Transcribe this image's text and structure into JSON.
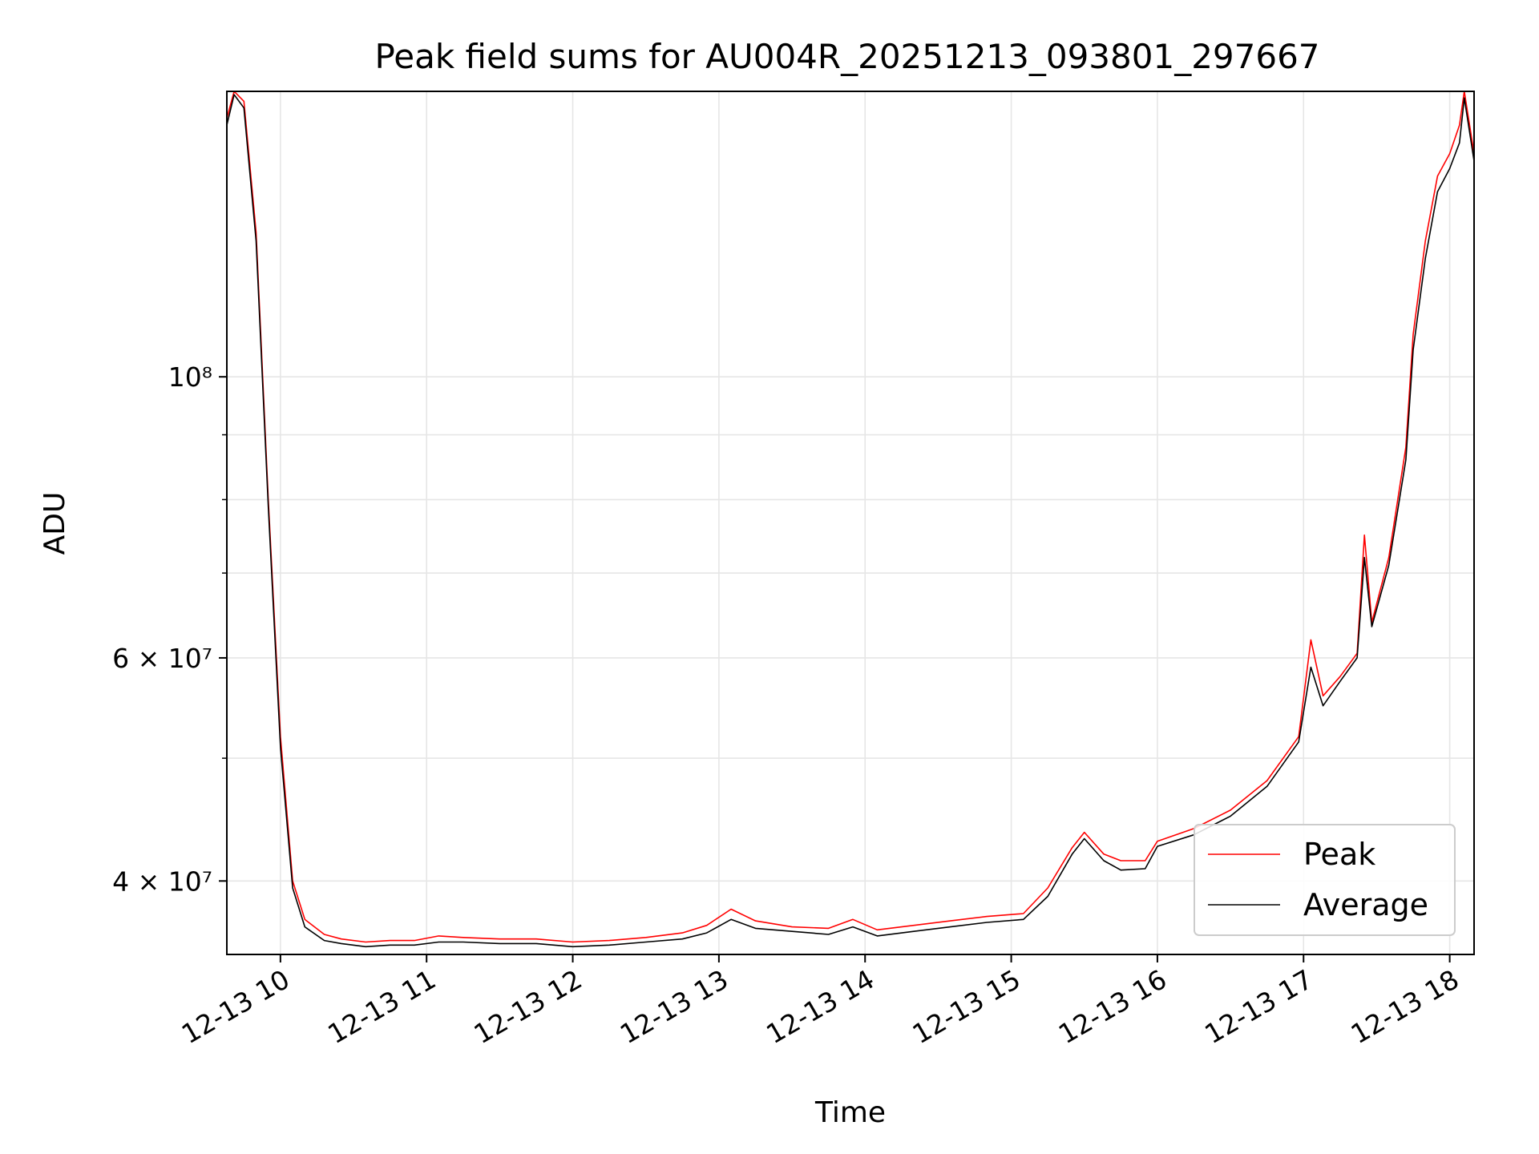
{
  "chart_data": {
    "type": "line",
    "title": "Peak field sums for AU004R_20251213_093801_297667",
    "xlabel": "Time",
    "ylabel": "ADU",
    "yscale": "log",
    "grid": true,
    "legend_position": "lower-right",
    "xlim": [
      "2025-12-13 09:38",
      "2025-12-13 18:10"
    ],
    "ylim": [
      35000000,
      168000000
    ],
    "x_ticks": [
      {
        "t": "2025-12-13 10:00",
        "label": "12-13 10"
      },
      {
        "t": "2025-12-13 11:00",
        "label": "12-13 11"
      },
      {
        "t": "2025-12-13 12:00",
        "label": "12-13 12"
      },
      {
        "t": "2025-12-13 13:00",
        "label": "12-13 13"
      },
      {
        "t": "2025-12-13 14:00",
        "label": "12-13 14"
      },
      {
        "t": "2025-12-13 15:00",
        "label": "12-13 15"
      },
      {
        "t": "2025-12-13 16:00",
        "label": "12-13 16"
      },
      {
        "t": "2025-12-13 17:00",
        "label": "12-13 17"
      },
      {
        "t": "2025-12-13 18:00",
        "label": "12-13 18"
      }
    ],
    "y_ticks": [
      {
        "value": 40000000,
        "label": "4 × 10⁷"
      },
      {
        "value": 60000000,
        "label": "6 × 10⁷"
      },
      {
        "value": 100000000,
        "label": "10⁸"
      }
    ],
    "y_minor_ticks": [
      50000000,
      70000000,
      80000000,
      90000000
    ],
    "series": [
      {
        "name": "Peak",
        "color": "#ff0000",
        "x": [
          "2025-12-13 09:38",
          "2025-12-13 09:41",
          "2025-12-13 09:45",
          "2025-12-13 09:50",
          "2025-12-13 09:55",
          "2025-12-13 10:00",
          "2025-12-13 10:05",
          "2025-12-13 10:10",
          "2025-12-13 10:18",
          "2025-12-13 10:25",
          "2025-12-13 10:35",
          "2025-12-13 10:45",
          "2025-12-13 10:55",
          "2025-12-13 11:05",
          "2025-12-13 11:15",
          "2025-12-13 11:30",
          "2025-12-13 11:45",
          "2025-12-13 12:00",
          "2025-12-13 12:15",
          "2025-12-13 12:30",
          "2025-12-13 12:45",
          "2025-12-13 12:55",
          "2025-12-13 13:05",
          "2025-12-13 13:15",
          "2025-12-13 13:30",
          "2025-12-13 13:45",
          "2025-12-13 13:55",
          "2025-12-13 14:05",
          "2025-12-13 14:20",
          "2025-12-13 14:35",
          "2025-12-13 14:50",
          "2025-12-13 15:05",
          "2025-12-13 15:15",
          "2025-12-13 15:25",
          "2025-12-13 15:30",
          "2025-12-13 15:38",
          "2025-12-13 15:45",
          "2025-12-13 15:55",
          "2025-12-13 16:00",
          "2025-12-13 16:15",
          "2025-12-13 16:30",
          "2025-12-13 16:45",
          "2025-12-13 16:58",
          "2025-12-13 17:03",
          "2025-12-13 17:08",
          "2025-12-13 17:15",
          "2025-12-13 17:22",
          "2025-12-13 17:25",
          "2025-12-13 17:28",
          "2025-12-13 17:35",
          "2025-12-13 17:42",
          "2025-12-13 17:45",
          "2025-12-13 17:50",
          "2025-12-13 17:55",
          "2025-12-13 18:00",
          "2025-12-13 18:04",
          "2025-12-13 18:06",
          "2025-12-13 18:10"
        ],
        "y": [
          160000000,
          168000000,
          165000000,
          130000000,
          80000000,
          52000000,
          40000000,
          37300000,
          36300000,
          36000000,
          35800000,
          35900000,
          35900000,
          36200000,
          36100000,
          36000000,
          36000000,
          35800000,
          35900000,
          36100000,
          36400000,
          36900000,
          38000000,
          37200000,
          36800000,
          36700000,
          37300000,
          36600000,
          36900000,
          37200000,
          37500000,
          37700000,
          39500000,
          42500000,
          43700000,
          42000000,
          41500000,
          41500000,
          43000000,
          44000000,
          45500000,
          48000000,
          52000000,
          62000000,
          56000000,
          58000000,
          60500000,
          75000000,
          64000000,
          72000000,
          88000000,
          108000000,
          128000000,
          144000000,
          150000000,
          158000000,
          168000000,
          150000000
        ]
      },
      {
        "name": "Average",
        "color": "#000000",
        "x": [
          "2025-12-13 09:38",
          "2025-12-13 09:41",
          "2025-12-13 09:45",
          "2025-12-13 09:50",
          "2025-12-13 09:55",
          "2025-12-13 10:00",
          "2025-12-13 10:05",
          "2025-12-13 10:10",
          "2025-12-13 10:18",
          "2025-12-13 10:25",
          "2025-12-13 10:35",
          "2025-12-13 10:45",
          "2025-12-13 10:55",
          "2025-12-13 11:05",
          "2025-12-13 11:15",
          "2025-12-13 11:30",
          "2025-12-13 11:45",
          "2025-12-13 12:00",
          "2025-12-13 12:15",
          "2025-12-13 12:30",
          "2025-12-13 12:45",
          "2025-12-13 12:55",
          "2025-12-13 13:05",
          "2025-12-13 13:15",
          "2025-12-13 13:30",
          "2025-12-13 13:45",
          "2025-12-13 13:55",
          "2025-12-13 14:05",
          "2025-12-13 14:20",
          "2025-12-13 14:35",
          "2025-12-13 14:50",
          "2025-12-13 15:05",
          "2025-12-13 15:15",
          "2025-12-13 15:25",
          "2025-12-13 15:30",
          "2025-12-13 15:38",
          "2025-12-13 15:45",
          "2025-12-13 15:55",
          "2025-12-13 16:00",
          "2025-12-13 16:15",
          "2025-12-13 16:30",
          "2025-12-13 16:45",
          "2025-12-13 16:58",
          "2025-12-13 17:03",
          "2025-12-13 17:08",
          "2025-12-13 17:15",
          "2025-12-13 17:22",
          "2025-12-13 17:25",
          "2025-12-13 17:28",
          "2025-12-13 17:35",
          "2025-12-13 17:42",
          "2025-12-13 17:45",
          "2025-12-13 17:50",
          "2025-12-13 17:55",
          "2025-12-13 18:00",
          "2025-12-13 18:04",
          "2025-12-13 18:06",
          "2025-12-13 18:10"
        ],
        "y": [
          158000000,
          167000000,
          163000000,
          128000000,
          79000000,
          51000000,
          39500000,
          36800000,
          35900000,
          35700000,
          35500000,
          35600000,
          35600000,
          35800000,
          35800000,
          35700000,
          35700000,
          35500000,
          35600000,
          35800000,
          36000000,
          36400000,
          37300000,
          36700000,
          36500000,
          36300000,
          36800000,
          36200000,
          36500000,
          36800000,
          37100000,
          37300000,
          38900000,
          42000000,
          43200000,
          41500000,
          40800000,
          40900000,
          42600000,
          43500000,
          45000000,
          47500000,
          51500000,
          59000000,
          55000000,
          57500000,
          60000000,
          72000000,
          63500000,
          71000000,
          86000000,
          105000000,
          124000000,
          140000000,
          146000000,
          153000000,
          166000000,
          148000000
        ]
      }
    ]
  }
}
